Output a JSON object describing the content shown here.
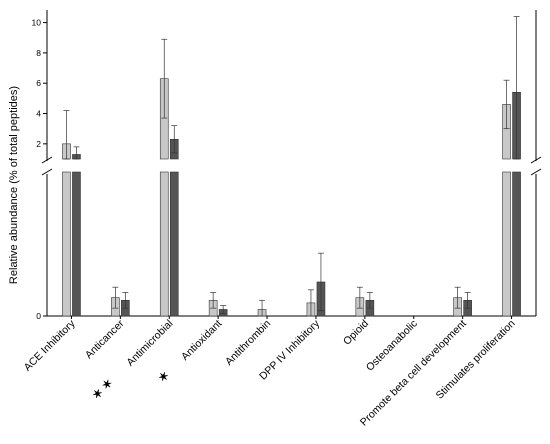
{
  "chart_data": {
    "type": "bar",
    "ylabel": "Relative abundance (% of total peptides)",
    "broken_axis": true,
    "upper_ylim": [
      1,
      10.5
    ],
    "upper_ticks": [
      2,
      4,
      6,
      8,
      10
    ],
    "lower_ylim": [
      0,
      0.55
    ],
    "lower_ticks": [
      0
    ],
    "categories": [
      {
        "label": "ACE Inhibitory",
        "stars": ""
      },
      {
        "label": "Anticancer",
        "stars": ""
      },
      {
        "label": "Antimicrobial",
        "stars": "✶ ✶"
      },
      {
        "label": "Antioxidant",
        "stars": "✶"
      },
      {
        "label": "Antithrombin",
        "stars": ""
      },
      {
        "label": "DPP IV Inhibitory",
        "stars": ""
      },
      {
        "label": "Opioid",
        "stars": ""
      },
      {
        "label": "Osteoanabolic",
        "stars": ""
      },
      {
        "label": "Promote beta cell development",
        "stars": ""
      },
      {
        "label": "Stimulates proliferation",
        "stars": ""
      }
    ],
    "series": [
      {
        "color": "#c8c8c8",
        "values": [
          2.0,
          0.07,
          6.3,
          0.06,
          0.025,
          0.05,
          0.07,
          0,
          0.07,
          4.6
        ],
        "errors": [
          2.2,
          0.04,
          2.6,
          0.03,
          0.035,
          0.05,
          0.04,
          0,
          0.04,
          1.6
        ]
      },
      {
        "color": "#555555",
        "values": [
          1.3,
          0.06,
          2.3,
          0.025,
          0,
          0.13,
          0.06,
          0,
          0.06,
          5.4
        ],
        "errors": [
          0.5,
          0.03,
          0.9,
          0.015,
          0,
          0.11,
          0.03,
          0,
          0.03,
          5.0
        ]
      }
    ]
  }
}
